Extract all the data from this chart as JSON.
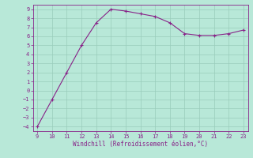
{
  "x": [
    9,
    10,
    11,
    12,
    13,
    14,
    15,
    16,
    17,
    18,
    19,
    20,
    21,
    22,
    23
  ],
  "y": [
    -4,
    -1,
    2,
    5,
    7.5,
    9,
    8.8,
    8.5,
    8.2,
    7.5,
    6.3,
    6.1,
    6.1,
    6.3,
    6.7
  ],
  "xlim": [
    8.7,
    23.3
  ],
  "ylim": [
    -4.5,
    9.5
  ],
  "xticks": [
    9,
    10,
    11,
    12,
    13,
    14,
    15,
    16,
    17,
    18,
    19,
    20,
    21,
    22,
    23
  ],
  "yticks": [
    -4,
    -3,
    -2,
    -1,
    0,
    1,
    2,
    3,
    4,
    5,
    6,
    7,
    8,
    9
  ],
  "xlabel": "Windchill (Refroidissement éolien,°C)",
  "line_color": "#882288",
  "marker": "+",
  "bg_color": "#b8e8d8",
  "grid_color": "#99ccbb",
  "tick_color": "#882288",
  "label_color": "#882288",
  "font_family": "monospace",
  "tick_fontsize": 5,
  "xlabel_fontsize": 5.5,
  "linewidth": 0.8,
  "markersize": 3
}
